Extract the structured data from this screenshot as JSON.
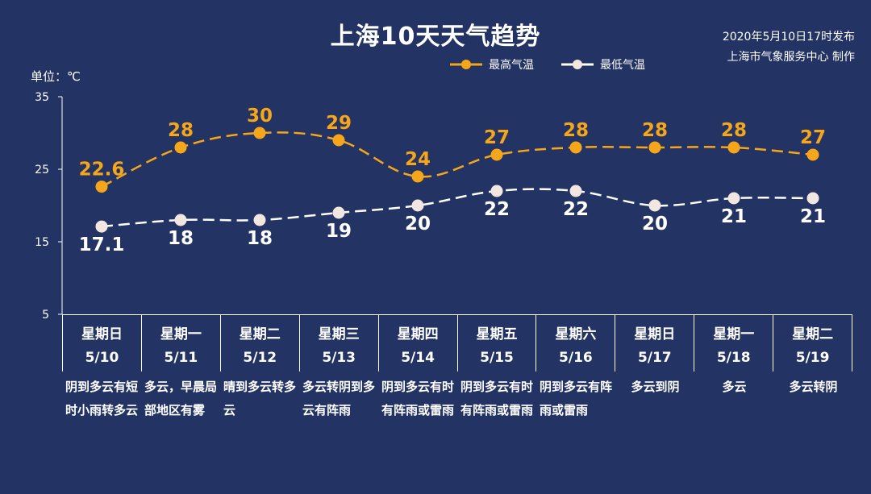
{
  "header": {
    "title": "上海10天天气趋势",
    "publish_time": "2020年5月10日17时发布",
    "publisher": "上海市气象服务中心 制作",
    "unit": "单位：℃"
  },
  "colors": {
    "high": "#F5A61B",
    "low": "#FFFFFF",
    "background": "#233363"
  },
  "chart_data": {
    "type": "line",
    "categories": [
      "5/10",
      "5/11",
      "5/12",
      "5/13",
      "5/14",
      "5/15",
      "5/16",
      "5/17",
      "5/18",
      "5/19"
    ],
    "ylim": [
      5,
      35
    ],
    "yticks": [
      5,
      15,
      25,
      35
    ],
    "series": [
      {
        "name": "最高气温",
        "values": [
          22.6,
          28,
          30,
          29,
          24,
          27,
          28,
          28,
          28,
          27
        ],
        "labels": [
          "22.6",
          "28",
          "30",
          "29",
          "24",
          "27",
          "28",
          "28",
          "28",
          "27"
        ]
      },
      {
        "name": "最低气温",
        "values": [
          17.1,
          18,
          18,
          19,
          20,
          22,
          22,
          20,
          21,
          21
        ],
        "labels": [
          "17.1",
          "18",
          "18",
          "19",
          "20",
          "22",
          "22",
          "20",
          "21",
          "21"
        ]
      }
    ],
    "legend_position": "top-right",
    "grid": false
  },
  "days": [
    {
      "weekday": "星期日",
      "date": "5/10",
      "weather": "阴到多云有短时小雨转多云"
    },
    {
      "weekday": "星期一",
      "date": "5/11",
      "weather": "多云，早晨局部地区有雾"
    },
    {
      "weekday": "星期二",
      "date": "5/12",
      "weather": "晴到多云转多云"
    },
    {
      "weekday": "星期三",
      "date": "5/13",
      "weather": "多云转阴到多云有阵雨"
    },
    {
      "weekday": "星期四",
      "date": "5/14",
      "weather": "阴到多云有时有阵雨或雷雨"
    },
    {
      "weekday": "星期五",
      "date": "5/15",
      "weather": "阴到多云有时有阵雨或雷雨"
    },
    {
      "weekday": "星期六",
      "date": "5/16",
      "weather": "阴到多云有阵雨或雷雨"
    },
    {
      "weekday": "星期日",
      "date": "5/17",
      "weather": "多云到阴"
    },
    {
      "weekday": "星期一",
      "date": "5/18",
      "weather": "多云"
    },
    {
      "weekday": "星期二",
      "date": "5/19",
      "weather": "多云转阴"
    }
  ]
}
